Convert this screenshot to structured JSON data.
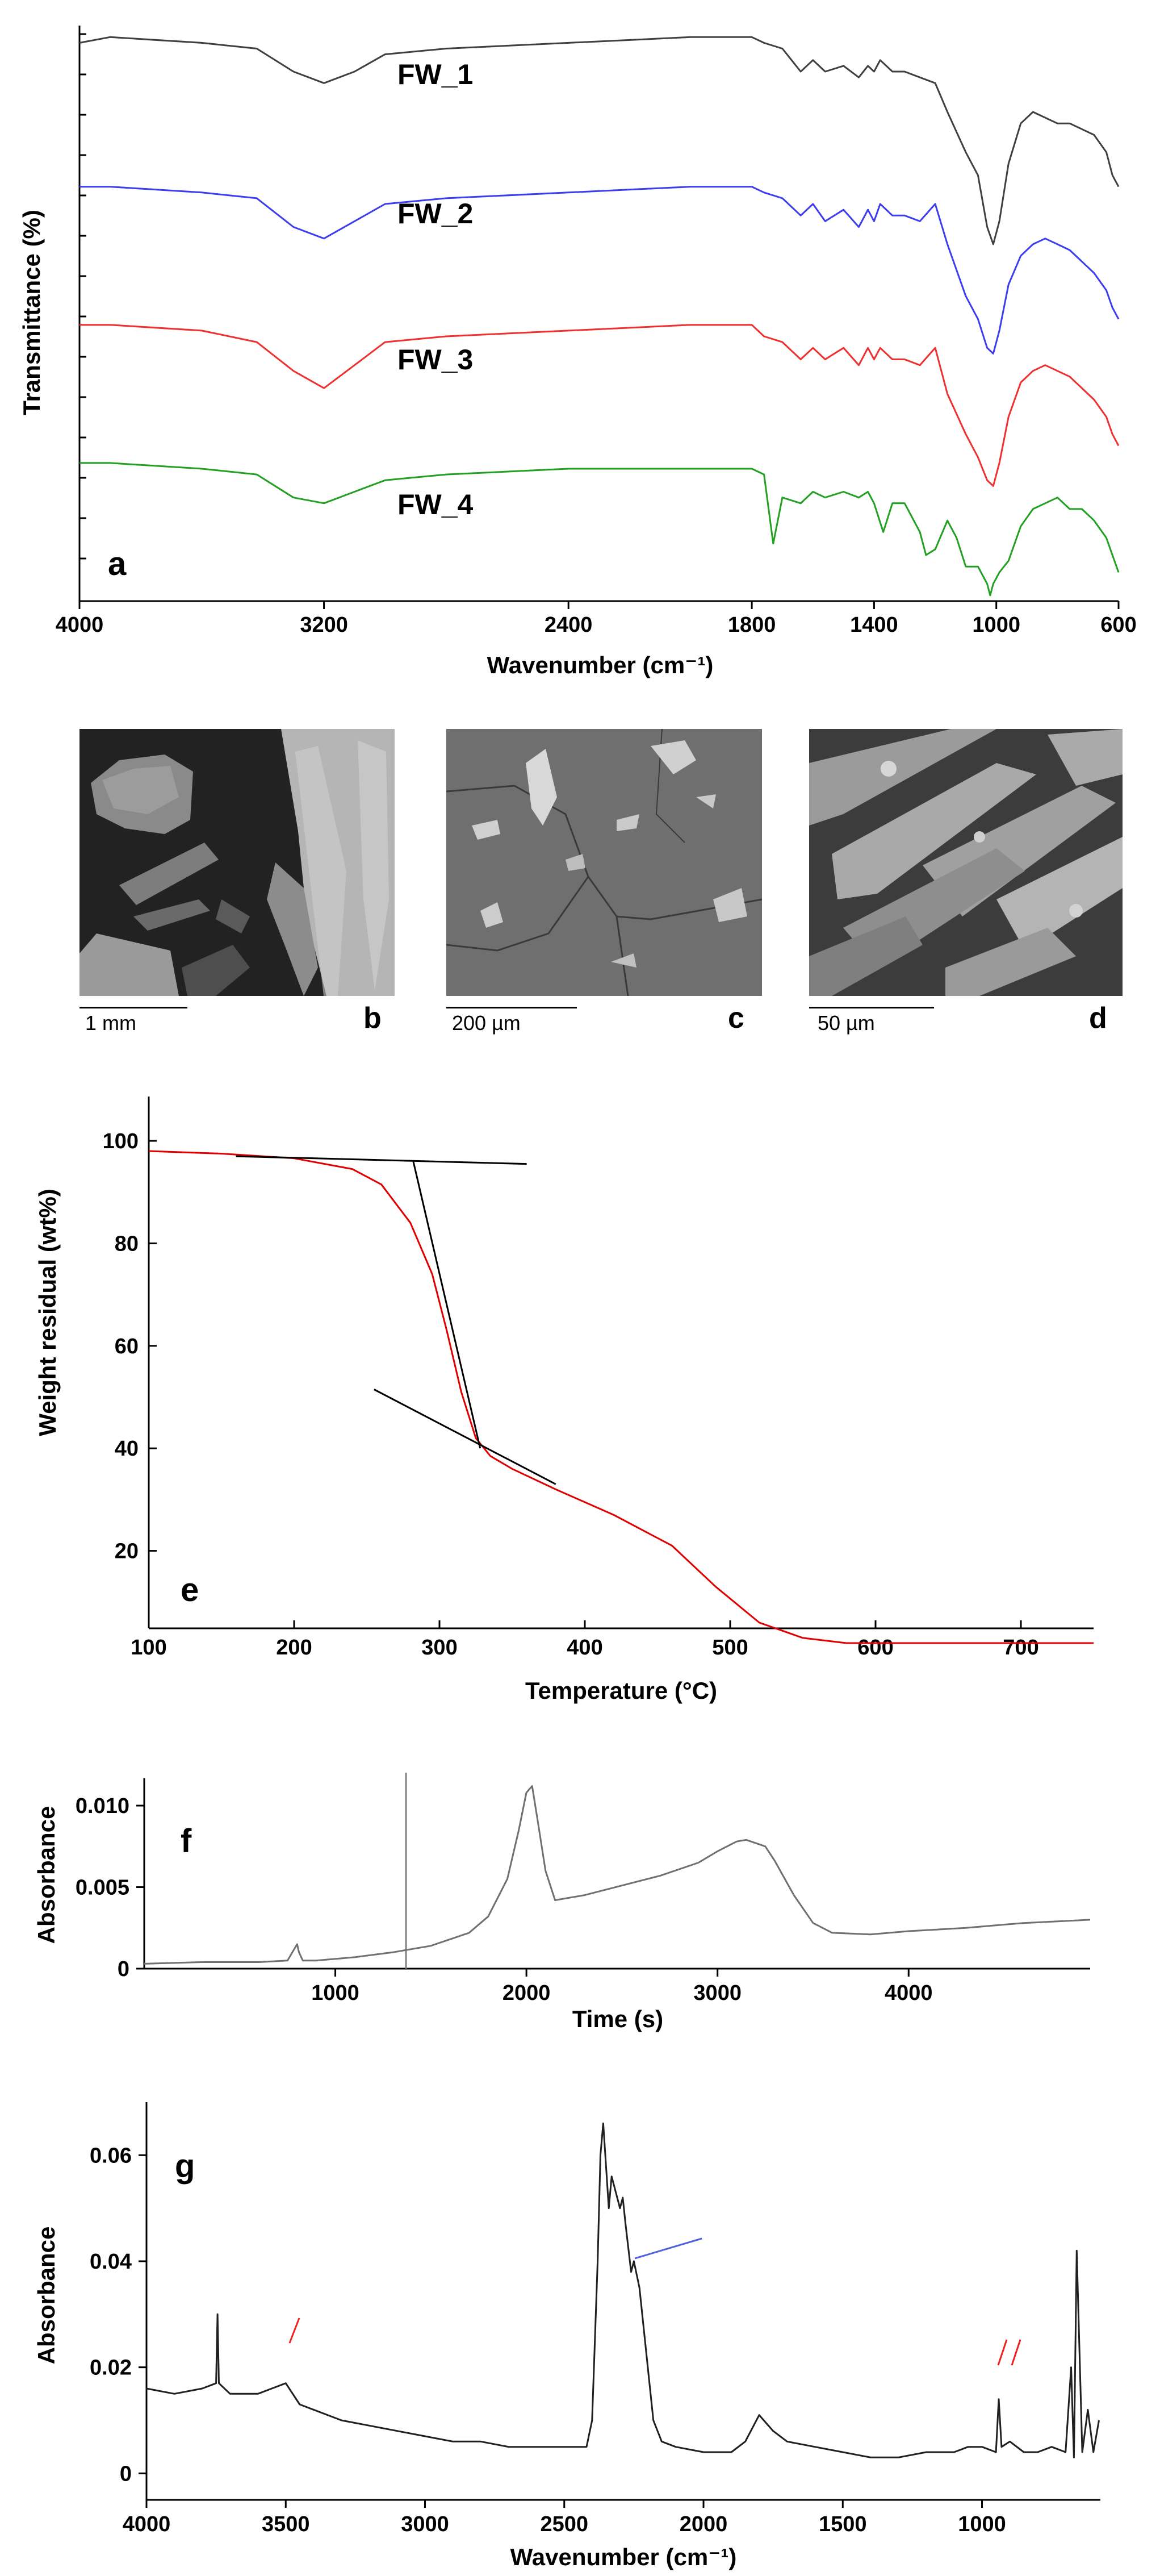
{
  "chart_data": [
    {
      "panel": "a",
      "type": "line",
      "xlabel": "Wavenumber (cm⁻¹)",
      "ylabel": "Transmittance (%)",
      "xlim": [
        4000,
        600
      ],
      "x_reversed": true,
      "x_ticks": [
        "4000",
        "3200",
        "2400",
        "1800",
        "1400",
        "1000",
        "600"
      ],
      "y_ticks_labeled": false,
      "series": [
        {
          "name": "FW_1",
          "color": "#404040",
          "x": [
            4000,
            3900,
            3600,
            3420,
            3300,
            3200,
            3100,
            3000,
            2800,
            2400,
            2000,
            1800,
            1760,
            1700,
            1640,
            1600,
            1560,
            1500,
            1450,
            1420,
            1400,
            1380,
            1340,
            1300,
            1250,
            1200,
            1160,
            1100,
            1060,
            1030,
            1010,
            990,
            960,
            920,
            880,
            840,
            800,
            760,
            720,
            680,
            640,
            620,
            600
          ],
          "y": [
            97,
            98,
            97,
            96,
            92,
            90,
            92,
            95,
            96,
            97,
            98,
            98,
            97,
            96,
            92,
            94,
            92,
            93,
            91,
            93,
            92,
            94,
            92,
            92,
            91,
            90,
            85,
            78,
            74,
            65,
            62,
            66,
            76,
            83,
            85,
            84,
            83,
            83,
            82,
            81,
            78,
            74,
            72
          ]
        },
        {
          "name": "FW_2",
          "color": "#3d3df0",
          "x": [
            4000,
            3900,
            3600,
            3420,
            3300,
            3200,
            3100,
            3000,
            2800,
            2400,
            2000,
            1800,
            1760,
            1700,
            1640,
            1600,
            1560,
            1500,
            1450,
            1420,
            1400,
            1380,
            1340,
            1300,
            1250,
            1200,
            1160,
            1100,
            1060,
            1030,
            1010,
            990,
            960,
            920,
            880,
            840,
            800,
            760,
            720,
            680,
            640,
            620,
            600
          ],
          "y": [
            72,
            72,
            71,
            70,
            65,
            63,
            66,
            69,
            70,
            71,
            72,
            72,
            71,
            70,
            67,
            69,
            66,
            68,
            65,
            68,
            66,
            69,
            67,
            67,
            66,
            69,
            62,
            53,
            49,
            44,
            43,
            47,
            55,
            60,
            62,
            63,
            62,
            61,
            59,
            57,
            54,
            51,
            49
          ]
        },
        {
          "name": "FW_3",
          "color": "#ee3030",
          "x": [
            4000,
            3900,
            3600,
            3420,
            3300,
            3200,
            3100,
            3000,
            2800,
            2400,
            2000,
            1800,
            1760,
            1700,
            1640,
            1600,
            1560,
            1500,
            1450,
            1420,
            1400,
            1380,
            1340,
            1300,
            1250,
            1200,
            1160,
            1100,
            1060,
            1030,
            1010,
            990,
            960,
            920,
            880,
            840,
            800,
            760,
            720,
            680,
            640,
            620,
            600
          ],
          "y": [
            48,
            48,
            47,
            45,
            40,
            37,
            41,
            45,
            46,
            47,
            48,
            48,
            46,
            45,
            42,
            44,
            42,
            44,
            41,
            44,
            42,
            44,
            42,
            42,
            41,
            44,
            36,
            29,
            25,
            21,
            20,
            24,
            32,
            38,
            40,
            41,
            40,
            39,
            37,
            35,
            32,
            29,
            27
          ]
        },
        {
          "name": "FW_4",
          "color": "#22a022",
          "x": [
            4000,
            3900,
            3600,
            3420,
            3300,
            3200,
            3100,
            3000,
            2800,
            2400,
            2000,
            1800,
            1760,
            1730,
            1700,
            1640,
            1600,
            1560,
            1500,
            1450,
            1420,
            1400,
            1370,
            1340,
            1300,
            1250,
            1230,
            1200,
            1160,
            1130,
            1100,
            1060,
            1030,
            1020,
            1010,
            990,
            960,
            920,
            880,
            840,
            800,
            760,
            720,
            680,
            640,
            620,
            600
          ],
          "y": [
            24,
            24,
            23,
            22,
            18,
            17,
            19,
            21,
            22,
            23,
            23,
            23,
            22,
            10,
            18,
            17,
            19,
            18,
            19,
            18,
            19,
            17,
            12,
            17,
            17,
            12,
            8,
            9,
            14,
            11,
            6,
            6,
            3,
            1,
            3,
            5,
            7,
            13,
            16,
            17,
            18,
            16,
            16,
            14,
            11,
            8,
            5
          ]
        }
      ],
      "annotations": [
        "FW_1",
        "FW_2",
        "FW_3",
        "FW_4"
      ]
    },
    {
      "panel": "e",
      "type": "line",
      "xlabel": "Temperature (°C)",
      "ylabel": "Weight residual (wt%)",
      "xlim": [
        100,
        750
      ],
      "ylim": [
        2,
        100
      ],
      "x_ticks": [
        100,
        200,
        300,
        400,
        500,
        600,
        700
      ],
      "y_ticks": [
        20,
        40,
        60,
        80,
        100
      ],
      "series": [
        {
          "name": "",
          "color": "#e00000",
          "x": [
            100,
            150,
            200,
            240,
            260,
            280,
            295,
            305,
            315,
            325,
            335,
            350,
            380,
            420,
            460,
            490,
            520,
            550,
            580,
            620,
            700,
            750
          ],
          "y": [
            98,
            97.5,
            96.6,
            94.5,
            91.5,
            84,
            74,
            63,
            51,
            42,
            38.5,
            36,
            32,
            27,
            21,
            13,
            6,
            3,
            2,
            2,
            2,
            2
          ]
        },
        {
          "name": "",
          "color": "#000000",
          "x": [
            160,
            360
          ],
          "y": [
            97,
            95.5
          ]
        },
        {
          "name": "",
          "color": "#000000",
          "x": [
            282,
            328
          ],
          "y": [
            96,
            40
          ]
        },
        {
          "name": "",
          "color": "#000000",
          "x": [
            255,
            380
          ],
          "y": [
            51.5,
            33
          ]
        }
      ]
    },
    {
      "panel": "f",
      "type": "line",
      "xlabel": "Time (s)",
      "ylabel": "Absorbance",
      "xlim": [
        0,
        4950
      ],
      "ylim": [
        0,
        0.0115
      ],
      "x_ticks": [
        1000,
        2000,
        3000,
        4000
      ],
      "y_ticks": [
        "0",
        "0.005",
        "0.010"
      ],
      "vertical_marker_x": 1370,
      "series": [
        {
          "name": "",
          "color": "#707070",
          "x": [
            0,
            300,
            600,
            750,
            790,
            800,
            810,
            830,
            900,
            1100,
            1300,
            1500,
            1700,
            1800,
            1900,
            1960,
            2000,
            2030,
            2060,
            2100,
            2150,
            2300,
            2500,
            2700,
            2900,
            3000,
            3100,
            3150,
            3250,
            3300,
            3400,
            3500,
            3600,
            3800,
            4000,
            4300,
            4600,
            4950
          ],
          "y": [
            0.0003,
            0.0004,
            0.0004,
            0.0005,
            0.0013,
            0.0015,
            0.001,
            0.0005,
            0.0005,
            0.0007,
            0.001,
            0.0014,
            0.0022,
            0.0032,
            0.0055,
            0.0085,
            0.0108,
            0.0112,
            0.009,
            0.006,
            0.0042,
            0.0045,
            0.0051,
            0.0057,
            0.0065,
            0.0072,
            0.0078,
            0.0079,
            0.0075,
            0.0066,
            0.0045,
            0.0028,
            0.0022,
            0.0021,
            0.0023,
            0.0025,
            0.0028,
            0.003
          ]
        }
      ]
    },
    {
      "panel": "g",
      "type": "line",
      "xlabel": "Wavenumber (cm⁻¹)",
      "ylabel": "Absorbance",
      "xlim": [
        4000,
        575
      ],
      "x_reversed": true,
      "ylim": [
        -0.005,
        0.07
      ],
      "x_ticks": [
        4000,
        3500,
        3000,
        2500,
        2000,
        1500,
        1000
      ],
      "y_ticks": [
        "0",
        "0.02",
        "0.04",
        "0.06"
      ],
      "series": [
        {
          "name": "",
          "color": "#202020",
          "x": [
            4000,
            3900,
            3800,
            3750,
            3745,
            3740,
            3700,
            3600,
            3550,
            3500,
            3450,
            3400,
            3300,
            3200,
            3100,
            3000,
            2900,
            2800,
            2700,
            2600,
            2500,
            2420,
            2400,
            2380,
            2370,
            2360,
            2350,
            2340,
            2330,
            2320,
            2300,
            2290,
            2280,
            2260,
            2250,
            2230,
            2200,
            2180,
            2150,
            2100,
            2000,
            1900,
            1850,
            1800,
            1750,
            1700,
            1600,
            1500,
            1400,
            1300,
            1200,
            1100,
            1050,
            1000,
            950,
            940,
            930,
            900,
            850,
            800,
            750,
            700,
            680,
            670,
            660,
            640,
            620,
            600,
            580
          ],
          "y": [
            0.016,
            0.015,
            0.016,
            0.017,
            0.03,
            0.017,
            0.015,
            0.015,
            0.016,
            0.017,
            0.013,
            0.012,
            0.01,
            0.009,
            0.008,
            0.007,
            0.006,
            0.006,
            0.005,
            0.005,
            0.005,
            0.005,
            0.01,
            0.04,
            0.06,
            0.066,
            0.058,
            0.05,
            0.056,
            0.054,
            0.05,
            0.052,
            0.047,
            0.038,
            0.04,
            0.035,
            0.02,
            0.01,
            0.006,
            0.005,
            0.004,
            0.004,
            0.006,
            0.011,
            0.008,
            0.006,
            0.005,
            0.004,
            0.003,
            0.003,
            0.004,
            0.004,
            0.005,
            0.005,
            0.004,
            0.014,
            0.005,
            0.006,
            0.004,
            0.004,
            0.005,
            0.004,
            0.02,
            0.003,
            0.042,
            0.004,
            0.012,
            0.004,
            0.01
          ]
        }
      ]
    }
  ],
  "panels": {
    "a": {
      "letter": "a"
    },
    "b": {
      "letter": "b",
      "scalebar": "1 mm"
    },
    "c": {
      "letter": "c",
      "scalebar": "200 µm"
    },
    "d": {
      "letter": "d",
      "scalebar": "50 µm"
    },
    "e": {
      "letter": "e"
    },
    "f": {
      "letter": "f"
    },
    "g": {
      "letter": "g"
    }
  }
}
